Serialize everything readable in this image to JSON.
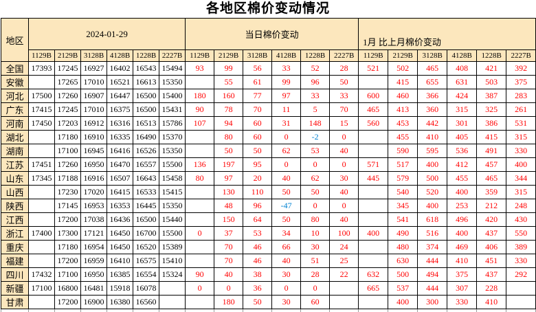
{
  "title": "各地区棉价变动情况",
  "colors": {
    "header_bg": "#FCE7BD",
    "grid": "#000000",
    "positive_text": "#FF0000",
    "negative_text": "#0082D2",
    "price_text": "#000000"
  },
  "table": {
    "corner_label": "地区",
    "groups": [
      {
        "label": "2024-01-29",
        "columns": [
          "1129B",
          "2129B",
          "3128B",
          "4128B",
          "1228B",
          "2227B"
        ]
      },
      {
        "label": "当日棉价变动",
        "columns": [
          "1129B",
          "2129B",
          "3128B",
          "4128B",
          "1228B",
          "2227B"
        ]
      },
      {
        "label": "1月 比上月棉价变动",
        "columns": [
          "1129B",
          "2129B",
          "3128B",
          "4128B",
          "1228B",
          "2227B"
        ]
      }
    ],
    "rows": [
      {
        "region": "全国",
        "prices": [
          "17393",
          "17245",
          "16927",
          "16402",
          "16543",
          "15494"
        ],
        "daily": [
          "93",
          "99",
          "56",
          "33",
          "52",
          "28"
        ],
        "monthly": [
          "521",
          "502",
          "465",
          "408",
          "421",
          "392"
        ]
      },
      {
        "region": "安徽",
        "prices": [
          "",
          "17265",
          "17010",
          "16521",
          "16613",
          "15350"
        ],
        "daily": [
          "",
          "55",
          "61",
          "99",
          "96",
          "50"
        ],
        "monthly": [
          "",
          "415",
          "655",
          "631",
          "503",
          "375"
        ]
      },
      {
        "region": "河北",
        "prices": [
          "17500",
          "17260",
          "16907",
          "16447",
          "16500",
          "15400"
        ],
        "daily": [
          "180",
          "160",
          "77",
          "97",
          "33",
          "33"
        ],
        "monthly": [
          "600",
          "460",
          "366",
          "424",
          "387",
          "283"
        ]
      },
      {
        "region": "广东",
        "prices": [
          "17415",
          "17245",
          "17010",
          "16375",
          "16500",
          "15431"
        ],
        "daily": [
          "90",
          "78",
          "70",
          "11",
          "5",
          "70"
        ],
        "monthly": [
          "465",
          "413",
          "360",
          "315",
          "325",
          "261"
        ]
      },
      {
        "region": "河南",
        "prices": [
          "17450",
          "17203",
          "16912",
          "16316",
          "16513",
          "15786"
        ],
        "daily": [
          "107",
          "94",
          "60",
          "31",
          "148",
          "15"
        ],
        "monthly": [
          "560",
          "453",
          "442",
          "301",
          "386",
          "531"
        ]
      },
      {
        "region": "湖北",
        "prices": [
          "",
          "17180",
          "16910",
          "16335",
          "16490",
          "15370"
        ],
        "daily": [
          "",
          "80",
          "60",
          "0",
          "-2",
          "0"
        ],
        "monthly": [
          "",
          "455",
          "410",
          "405",
          "415",
          "315"
        ]
      },
      {
        "region": "湖南",
        "prices": [
          "",
          "17100",
          "16945",
          "16416",
          "16526",
          "15350"
        ],
        "daily": [
          "",
          "50",
          "50",
          "62",
          "53",
          "40"
        ],
        "monthly": [
          "",
          "590",
          "595",
          "536",
          "491",
          "330"
        ]
      },
      {
        "region": "江苏",
        "prices": [
          "17451",
          "17260",
          "16950",
          "16470",
          "16557",
          "15500"
        ],
        "daily": [
          "136",
          "197",
          "95",
          "0",
          "0",
          "0"
        ],
        "monthly": [
          "571",
          "517",
          "400",
          "412",
          "457",
          "400"
        ]
      },
      {
        "region": "山东",
        "prices": [
          "17345",
          "17188",
          "16916",
          "16507",
          "16643",
          "15458"
        ],
        "daily": [
          "80",
          "97",
          "20",
          "40",
          "62",
          "30"
        ],
        "monthly": [
          "445",
          "579",
          "500",
          "455",
          "465",
          "344"
        ]
      },
      {
        "region": "山西",
        "prices": [
          "",
          "17230",
          "17020",
          "16415",
          "16533",
          "15415"
        ],
        "daily": [
          "",
          "130",
          "110",
          "50",
          "50",
          "40"
        ],
        "monthly": [
          "",
          "540",
          "520",
          "400",
          "359",
          "315"
        ]
      },
      {
        "region": "陕西",
        "prices": [
          "",
          "17145",
          "16953",
          "16353",
          "16445",
          "15350"
        ],
        "daily": [
          "",
          "48",
          "96",
          "-47",
          "0",
          "0"
        ],
        "monthly": [
          "",
          "345",
          "400",
          "253",
          "212",
          "248"
        ]
      },
      {
        "region": "江西",
        "prices": [
          "",
          "17200",
          "17038",
          "16436",
          "16500",
          "15440"
        ],
        "daily": [
          "",
          "150",
          "64",
          "50",
          "80",
          "40"
        ],
        "monthly": [
          "",
          "541",
          "618",
          "496",
          "420",
          "430"
        ]
      },
      {
        "region": "浙江",
        "prices": [
          "17400",
          "17300",
          "17121",
          "16450",
          "16700",
          "15500"
        ],
        "daily": [
          "0",
          "37",
          "53",
          "34",
          "10",
          "100"
        ],
        "monthly": [
          "400",
          "490",
          "516",
          "400",
          "437",
          "550"
        ]
      },
      {
        "region": "重庆",
        "prices": [
          "",
          "17180",
          "16954",
          "16450",
          "16520",
          "15389"
        ],
        "daily": [
          "",
          "70",
          "46",
          "66",
          "30",
          "24"
        ],
        "monthly": [
          "",
          "480",
          "374",
          "469",
          "406",
          "389"
        ]
      },
      {
        "region": "福建",
        "prices": [
          "",
          "17200",
          "16959",
          "16410",
          "16575",
          "15410"
        ],
        "daily": [
          "",
          "70",
          "46",
          "40",
          "51",
          "25"
        ],
        "monthly": [
          "",
          "630",
          "444",
          "410",
          "451",
          "330"
        ]
      },
      {
        "region": "四川",
        "prices": [
          "17432",
          "17100",
          "16950",
          "16385",
          "16554",
          "15324"
        ],
        "daily": [
          "90",
          "40",
          "38",
          "30",
          "28",
          "22"
        ],
        "monthly": [
          "632",
          "500",
          "494",
          "375",
          "437",
          "292"
        ]
      },
      {
        "region": "新疆",
        "prices": [
          "17100",
          "16800",
          "16481",
          "15918",
          "16078",
          ""
        ],
        "daily": [
          "0",
          "0",
          "36",
          "0",
          "0",
          ""
        ],
        "monthly": [
          "665",
          "537",
          "444",
          "307",
          "228",
          ""
        ]
      },
      {
        "region": "甘肃",
        "prices": [
          "",
          "17200",
          "16900",
          "16380",
          "16560",
          ""
        ],
        "daily": [
          "",
          "180",
          "50",
          "30",
          "60",
          ""
        ],
        "monthly": [
          "",
          "400",
          "300",
          "330",
          "410",
          ""
        ]
      }
    ]
  }
}
